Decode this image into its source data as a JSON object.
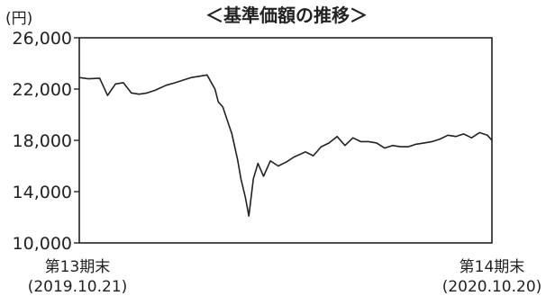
{
  "chart_data": {
    "type": "line",
    "title": "＜基準価額の推移＞",
    "ylabel": "(円)",
    "xlabel": "",
    "ylim": [
      10000,
      26000
    ],
    "yticks": [
      10000,
      14000,
      18000,
      22000,
      26000
    ],
    "ytick_labels": [
      "10,000",
      "14,000",
      "18,000",
      "22,000",
      "26,000"
    ],
    "x_start": {
      "label": "第13期末",
      "date": "(2019.10.21)"
    },
    "x_end": {
      "label": "第14期末",
      "date": "(2020.10.20)"
    },
    "grid": false,
    "legend": "none",
    "series": [
      {
        "color": "#222222",
        "x": [
          "2019-10-21",
          "2019-10-29",
          "2019-11-08",
          "2019-11-15",
          "2019-11-22",
          "2019-11-29",
          "2019-12-06",
          "2019-12-13",
          "2019-12-20",
          "2019-12-27",
          "2020-01-06",
          "2020-01-14",
          "2020-01-21",
          "2020-01-28",
          "2020-02-04",
          "2020-02-11",
          "2020-02-18",
          "2020-02-21",
          "2020-02-25",
          "2020-02-28",
          "2020-03-04",
          "2020-03-09",
          "2020-03-12",
          "2020-03-16",
          "2020-03-19",
          "2020-03-23",
          "2020-03-27",
          "2020-04-01",
          "2020-04-07",
          "2020-04-14",
          "2020-04-21",
          "2020-04-28",
          "2020-05-08",
          "2020-05-15",
          "2020-05-22",
          "2020-05-29",
          "2020-06-05",
          "2020-06-12",
          "2020-06-19",
          "2020-06-26",
          "2020-07-03",
          "2020-07-10",
          "2020-07-17",
          "2020-07-24",
          "2020-07-31",
          "2020-08-07",
          "2020-08-14",
          "2020-08-21",
          "2020-08-28",
          "2020-09-04",
          "2020-09-11",
          "2020-09-18",
          "2020-09-25",
          "2020-10-02",
          "2020-10-09",
          "2020-10-16",
          "2020-10-20"
        ],
        "values": [
          22900,
          22800,
          22850,
          21500,
          22400,
          22500,
          21700,
          21600,
          21700,
          21900,
          22300,
          22500,
          22700,
          22900,
          23000,
          23100,
          22000,
          21000,
          20600,
          19800,
          18500,
          16500,
          15000,
          13500,
          12100,
          15000,
          16200,
          15200,
          16400,
          16000,
          16300,
          16700,
          17100,
          16800,
          17500,
          17800,
          18300,
          17600,
          18200,
          17900,
          17900,
          17800,
          17400,
          17600,
          17500,
          17500,
          17700,
          17800,
          17900,
          18100,
          18400,
          18300,
          18500,
          18200,
          18600,
          18400,
          18000
        ]
      }
    ]
  }
}
